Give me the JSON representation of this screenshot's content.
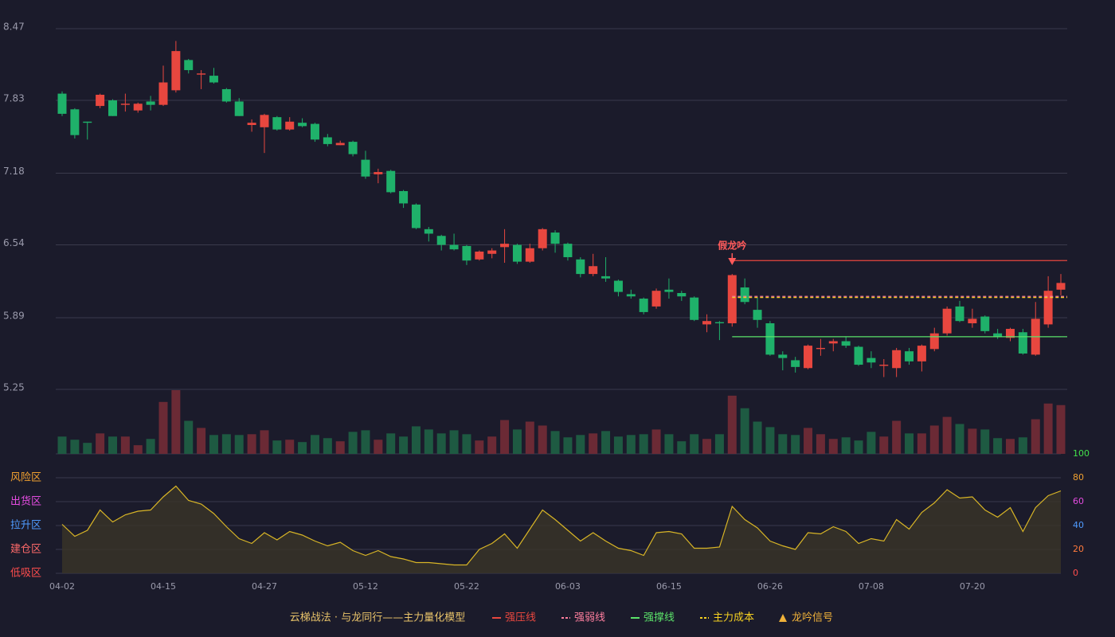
{
  "chart_data": {
    "type": "candlestick",
    "categories": [
      "04-02",
      null,
      null,
      null,
      null,
      null,
      null,
      null,
      "04-15",
      null,
      null,
      null,
      null,
      null,
      null,
      null,
      "04-27",
      null,
      null,
      null,
      null,
      null,
      null,
      null,
      "05-12",
      null,
      null,
      null,
      null,
      null,
      null,
      null,
      "05-22",
      null,
      null,
      null,
      null,
      null,
      null,
      null,
      "06-03",
      null,
      null,
      null,
      null,
      null,
      null,
      null,
      "06-15",
      null,
      null,
      null,
      null,
      null,
      null,
      null,
      "06-26",
      null,
      null,
      null,
      null,
      null,
      null,
      null,
      "07-08",
      null,
      null,
      null,
      null,
      null,
      null,
      null,
      "07-20",
      null,
      null,
      null,
      null,
      null,
      null,
      null
    ],
    "open": [
      7.89,
      7.75,
      7.64,
      7.78,
      7.83,
      7.79,
      7.74,
      7.82,
      7.79,
      7.92,
      8.19,
      8.06,
      8.05,
      7.93,
      7.82,
      7.61,
      7.59,
      7.68,
      7.57,
      7.63,
      7.62,
      7.5,
      7.43,
      7.46,
      7.3,
      7.17,
      7.2,
      7.02,
      6.9,
      6.68,
      6.62,
      6.54,
      6.53,
      6.41,
      6.46,
      6.52,
      6.54,
      6.39,
      6.51,
      6.65,
      6.55,
      6.41,
      6.28,
      6.26,
      6.22,
      6.1,
      6.06,
      5.99,
      6.14,
      6.11,
      6.07,
      5.83,
      5.85,
      5.84,
      6.16,
      5.96,
      5.84,
      5.56,
      5.51,
      5.44,
      5.61,
      5.66,
      5.68,
      5.63,
      5.53,
      5.46,
      5.44,
      5.59,
      5.5,
      5.61,
      5.75,
      5.99,
      5.84,
      5.9,
      5.75,
      5.71,
      5.76,
      5.56,
      5.83,
      6.14
    ],
    "high": [
      7.91,
      7.76,
      7.64,
      7.89,
      7.84,
      7.89,
      7.81,
      7.87,
      8.14,
      8.36,
      8.2,
      8.1,
      8.12,
      7.94,
      7.85,
      7.66,
      7.71,
      7.69,
      7.68,
      7.67,
      7.63,
      7.53,
      7.47,
      7.47,
      7.38,
      7.22,
      7.21,
      7.03,
      6.91,
      6.7,
      6.63,
      6.64,
      6.54,
      6.49,
      6.51,
      6.68,
      6.55,
      6.55,
      6.69,
      6.67,
      6.56,
      6.43,
      6.46,
      6.43,
      6.23,
      6.14,
      6.07,
      6.15,
      6.24,
      6.13,
      6.08,
      5.92,
      5.86,
      6.28,
      6.24,
      6.07,
      5.86,
      5.59,
      5.54,
      5.65,
      5.7,
      5.7,
      5.72,
      5.64,
      5.59,
      5.52,
      5.62,
      5.62,
      5.65,
      5.8,
      5.99,
      6.04,
      5.97,
      5.91,
      5.79,
      5.8,
      5.79,
      6.03,
      6.26,
      6.28
    ],
    "low": [
      7.69,
      7.49,
      7.48,
      7.76,
      7.69,
      7.73,
      7.72,
      7.74,
      7.78,
      7.9,
      8.07,
      7.93,
      7.98,
      7.81,
      7.69,
      7.55,
      7.36,
      7.56,
      7.56,
      7.59,
      7.46,
      7.42,
      7.43,
      7.33,
      7.13,
      7.09,
      7.0,
      6.87,
      6.68,
      6.57,
      6.49,
      6.49,
      6.36,
      6.4,
      6.42,
      6.38,
      6.37,
      6.38,
      6.49,
      6.47,
      6.4,
      6.25,
      6.26,
      6.21,
      6.08,
      6.06,
      5.92,
      5.97,
      6.06,
      6.04,
      5.86,
      5.76,
      5.69,
      5.81,
      6.01,
      5.8,
      5.55,
      5.42,
      5.4,
      5.43,
      5.55,
      5.59,
      5.62,
      5.46,
      5.44,
      5.36,
      5.36,
      5.47,
      5.41,
      5.59,
      5.73,
      5.85,
      5.8,
      5.75,
      5.7,
      5.68,
      5.56,
      5.55,
      5.8,
      6.09
    ],
    "close": [
      7.71,
      7.52,
      7.63,
      7.88,
      7.69,
      7.8,
      7.8,
      7.79,
      7.99,
      8.27,
      8.1,
      8.07,
      7.99,
      7.82,
      7.69,
      7.63,
      7.7,
      7.57,
      7.64,
      7.6,
      7.48,
      7.44,
      7.45,
      7.35,
      7.15,
      7.19,
      7.01,
      6.91,
      6.69,
      6.64,
      6.54,
      6.5,
      6.4,
      6.48,
      6.49,
      6.55,
      6.39,
      6.51,
      6.68,
      6.55,
      6.43,
      6.28,
      6.35,
      6.24,
      6.12,
      6.08,
      5.94,
      6.13,
      6.12,
      6.08,
      5.87,
      5.86,
      5.84,
      6.27,
      6.03,
      5.87,
      5.56,
      5.53,
      5.45,
      5.64,
      5.62,
      5.68,
      5.64,
      5.47,
      5.49,
      5.47,
      5.6,
      5.5,
      5.64,
      5.75,
      5.97,
      5.86,
      5.88,
      5.77,
      5.72,
      5.79,
      5.57,
      5.88,
      6.13,
      6.2
    ],
    "up_color": "#e8473f",
    "down_color": "#1fb16a",
    "ylim": [
      5.25,
      8.47
    ],
    "yticks": [
      8.47,
      7.83,
      7.18,
      6.54,
      5.89,
      5.25
    ],
    "grid": true,
    "lines": [
      {
        "name": "强压线",
        "color": "#e8473f",
        "dash": false,
        "values": [
          null,
          null,
          null,
          null,
          null,
          null,
          null,
          null,
          null,
          null,
          null,
          null,
          null,
          null,
          null,
          null,
          null,
          null,
          null,
          null,
          null,
          null,
          null,
          null,
          null,
          null,
          null,
          null,
          null,
          null,
          null,
          null,
          null,
          null,
          null,
          null,
          null,
          null,
          null,
          null,
          null,
          null,
          null,
          null,
          null,
          null,
          null,
          null,
          null,
          null,
          null,
          null,
          null,
          6.4,
          6.4,
          6.4,
          6.4,
          6.4,
          6.4,
          6.4,
          6.4,
          6.4,
          6.4,
          6.4,
          6.4,
          6.4,
          6.4,
          6.4,
          6.4,
          6.4,
          6.4,
          6.4,
          6.4,
          6.4,
          6.4,
          6.4,
          6.4,
          6.4,
          6.4,
          6.4
        ]
      },
      {
        "name": "强弱线",
        "color": "#ff7f9f",
        "dash": true,
        "values": [
          null,
          null,
          null,
          null,
          null,
          null,
          null,
          null,
          null,
          null,
          null,
          null,
          null,
          null,
          null,
          null,
          null,
          null,
          null,
          null,
          null,
          null,
          null,
          null,
          null,
          null,
          null,
          null,
          null,
          null,
          null,
          null,
          null,
          null,
          null,
          null,
          null,
          null,
          null,
          null,
          null,
          null,
          null,
          null,
          null,
          null,
          null,
          null,
          null,
          null,
          null,
          null,
          null,
          6.08,
          6.08,
          6.08,
          6.08,
          6.08,
          6.08,
          6.08,
          6.08,
          6.08,
          6.08,
          6.08,
          6.08,
          6.08,
          6.08,
          6.08,
          6.08,
          6.08,
          6.08,
          6.08,
          6.08,
          6.08,
          6.08,
          6.08,
          6.08,
          6.08,
          6.08,
          6.08
        ]
      },
      {
        "name": "强撑线",
        "color": "#5be36a",
        "dash": false,
        "values": [
          null,
          null,
          null,
          null,
          null,
          null,
          null,
          null,
          null,
          null,
          null,
          null,
          null,
          null,
          null,
          null,
          null,
          null,
          null,
          null,
          null,
          null,
          null,
          null,
          null,
          null,
          null,
          null,
          null,
          null,
          null,
          null,
          null,
          null,
          null,
          null,
          null,
          null,
          null,
          null,
          null,
          null,
          null,
          null,
          null,
          null,
          null,
          null,
          null,
          null,
          null,
          null,
          null,
          5.72,
          5.72,
          5.72,
          5.72,
          5.72,
          5.72,
          5.72,
          5.72,
          5.72,
          5.72,
          5.72,
          5.72,
          5.72,
          5.72,
          5.72,
          5.72,
          5.72,
          5.72,
          5.72,
          5.72,
          5.72,
          5.72,
          5.72,
          5.72,
          5.72,
          5.72,
          5.72
        ]
      },
      {
        "name": "主力成本",
        "color": "#f5d020",
        "dash": true,
        "values": [
          null,
          null,
          null,
          null,
          null,
          null,
          null,
          null,
          null,
          null,
          null,
          null,
          null,
          null,
          null,
          null,
          null,
          null,
          null,
          null,
          null,
          null,
          null,
          null,
          null,
          null,
          null,
          null,
          null,
          null,
          null,
          null,
          null,
          null,
          null,
          null,
          null,
          null,
          null,
          null,
          null,
          null,
          null,
          null,
          null,
          null,
          null,
          null,
          null,
          null,
          null,
          null,
          null,
          6.07,
          6.07,
          6.07,
          6.07,
          6.07,
          6.07,
          6.07,
          6.07,
          6.07,
          6.07,
          6.07,
          6.07,
          6.07,
          6.07,
          6.07,
          6.07,
          6.07,
          6.07,
          6.07,
          6.07,
          6.07,
          6.07,
          6.07,
          6.07,
          6.07,
          6.07,
          6.07
        ]
      }
    ],
    "signal": {
      "name": "龙吟信号",
      "color": "#ff5a5a",
      "legend_color": "#f0b23a",
      "values": [
        null,
        null,
        null,
        null,
        null,
        null,
        null,
        null,
        null,
        null,
        null,
        null,
        null,
        null,
        null,
        null,
        null,
        null,
        null,
        null,
        null,
        null,
        null,
        null,
        null,
        null,
        null,
        null,
        null,
        null,
        null,
        null,
        null,
        null,
        null,
        null,
        null,
        null,
        null,
        null,
        null,
        null,
        null,
        null,
        null,
        null,
        null,
        null,
        null,
        null,
        null,
        null,
        null,
        6.38,
        null,
        null,
        null,
        null,
        null,
        null,
        null,
        null,
        null,
        null,
        null,
        null,
        null,
        null,
        null,
        null,
        null,
        null,
        null,
        null,
        null,
        null,
        null,
        null,
        null,
        null
      ],
      "value_labels": [
        null,
        null,
        null,
        null,
        null,
        null,
        null,
        null,
        null,
        null,
        null,
        null,
        null,
        null,
        null,
        null,
        null,
        null,
        null,
        null,
        null,
        null,
        null,
        null,
        null,
        null,
        null,
        null,
        null,
        null,
        null,
        null,
        null,
        null,
        null,
        null,
        null,
        null,
        null,
        null,
        null,
        null,
        null,
        null,
        null,
        null,
        null,
        null,
        null,
        null,
        null,
        null,
        null,
        "假龙吟",
        null,
        null,
        null,
        null,
        null,
        null,
        null,
        null,
        null,
        null,
        null,
        null,
        null,
        null,
        null,
        null,
        null,
        null,
        null,
        null,
        null,
        null,
        null,
        null,
        null,
        null
      ]
    },
    "volume": {
      "values": [
        22,
        18,
        14,
        26,
        22,
        22,
        11,
        19,
        66,
        81,
        42,
        33,
        24,
        25,
        24,
        25,
        30,
        17,
        18,
        15,
        24,
        20,
        16,
        28,
        30,
        18,
        26,
        22,
        35,
        31,
        26,
        30,
        25,
        17,
        22,
        43,
        31,
        41,
        36,
        29,
        21,
        24,
        26,
        29,
        22,
        24,
        25,
        31,
        25,
        16,
        25,
        19,
        25,
        74,
        58,
        41,
        34,
        25,
        24,
        33,
        25,
        19,
        21,
        17,
        28,
        22,
        42,
        26,
        26,
        36,
        47,
        38,
        32,
        31,
        20,
        19,
        21,
        44,
        64,
        62
      ],
      "ylim": [
        0,
        82
      ],
      "up_color": "#6b2a35",
      "down_color": "#1e5a42"
    },
    "indicator": {
      "values": [
        41,
        31,
        36,
        53,
        43,
        49,
        52,
        53,
        64,
        73,
        61,
        58,
        50,
        39,
        29,
        25,
        34,
        28,
        35,
        32,
        27,
        23,
        26,
        19,
        15,
        19,
        14,
        12,
        9,
        9,
        8,
        7,
        7,
        20,
        25,
        33,
        21,
        37,
        53,
        45,
        36,
        27,
        34,
        27,
        21,
        19,
        15,
        34,
        35,
        33,
        21,
        21,
        22,
        56,
        45,
        38,
        27,
        23,
        20,
        34,
        33,
        39,
        35,
        25,
        29,
        27,
        45,
        37,
        51,
        59,
        70,
        63,
        64,
        53,
        47,
        55,
        35,
        55,
        65,
        69
      ],
      "color": "#d8b526",
      "fill": "#3a3528",
      "ylim": [
        0,
        100
      ],
      "yticks": [
        0,
        20,
        40,
        60,
        80,
        100
      ],
      "ytick_colors": [
        "#ff4d4d",
        "#ff7a3d",
        "#4f9bff",
        "#e44ce0",
        "#f0a030",
        "#42e04a"
      ],
      "zones": [
        {
          "label": "风险区",
          "value": 80,
          "color": "#f0a030"
        },
        {
          "label": "出货区",
          "value": 60,
          "color": "#e44ce0"
        },
        {
          "label": "拉升区",
          "value": 40,
          "color": "#4f9bff"
        },
        {
          "label": "建仓区",
          "value": 20,
          "color": "#ff6a6a"
        },
        {
          "label": "低吸区",
          "value": 0,
          "color": "#ff4d4d"
        }
      ]
    },
    "legend_title": "云梯战法 · 与龙同行——主力量化模型"
  }
}
